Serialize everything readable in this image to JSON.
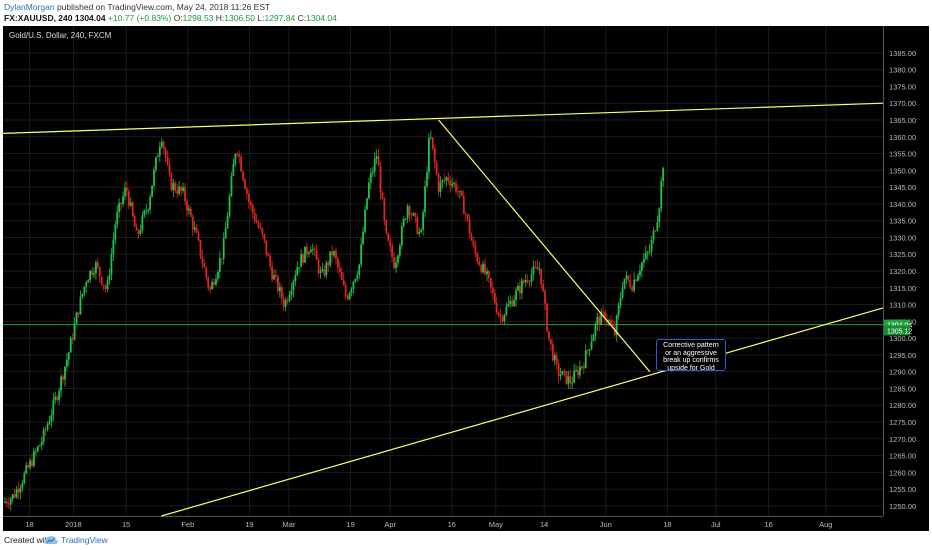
{
  "header": {
    "author": "DylanMorgan",
    "published_text": "published on TradingView.com, May 24, 2018 11:26 EST",
    "symbol": "FX:XAUUSD, 240",
    "last": "1304.04",
    "change": "+10.77 (+0.83%)",
    "o_label": "O:",
    "o": "1298.53",
    "h_label": "H:",
    "h": "1306.50",
    "l_label": "L:",
    "l": "1297.84",
    "c_label": "C:",
    "c": "1304.04"
  },
  "footer": {
    "created": "Created with",
    "brand": "TradingView",
    "logo_icon": "tradingview-cloud-icon"
  },
  "annotation": {
    "text": "Corrective pattern or an aggressive break up confirms upside for Gold"
  },
  "chart_data": {
    "type": "candlestick",
    "title": "Gold/U.S. Dollar, 240, FXCM",
    "ylim": [
      1247,
      1393
    ],
    "y_ticks": [
      "1385.00",
      "1380.00",
      "1375.00",
      "1370.00",
      "1365.00",
      "1360.00",
      "1355.00",
      "1350.00",
      "1345.00",
      "1340.00",
      "1335.00",
      "1330.00",
      "1325.00",
      "1320.00",
      "1315.00",
      "1310.00",
      "1305.00",
      "1300.00",
      "1295.00",
      "1290.00",
      "1285.00",
      "1280.00",
      "1275.00",
      "1270.00",
      "1265.00",
      "1260.00",
      "1255.00",
      "1250.00"
    ],
    "y_tick_values": [
      1385,
      1380,
      1375,
      1370,
      1365,
      1360,
      1355,
      1350,
      1345,
      1340,
      1335,
      1330,
      1325,
      1320,
      1315,
      1310,
      1305,
      1300,
      1295,
      1290,
      1285,
      1280,
      1275,
      1270,
      1265,
      1260,
      1255,
      1250
    ],
    "x_ticks": [
      {
        "label": "18",
        "t": 0.03
      },
      {
        "label": "2018",
        "t": 0.08
      },
      {
        "label": "15",
        "t": 0.14
      },
      {
        "label": "Feb",
        "t": 0.21
      },
      {
        "label": "19",
        "t": 0.28
      },
      {
        "label": "Mar",
        "t": 0.325
      },
      {
        "label": "19",
        "t": 0.395
      },
      {
        "label": "Apr",
        "t": 0.44
      },
      {
        "label": "16",
        "t": 0.51
      },
      {
        "label": "May",
        "t": 0.56
      },
      {
        "label": "14",
        "t": 0.615
      },
      {
        "label": "Jun",
        "t": 0.685
      },
      {
        "label": "18",
        "t": 0.755
      },
      {
        "label": "Jul",
        "t": 0.81
      },
      {
        "label": "16",
        "t": 0.87
      },
      {
        "label": "Aug",
        "t": 0.935
      }
    ],
    "current_price": "1304.04",
    "secondary_price_label": "1305.12",
    "horizontal_line": 1304.04,
    "colors": {
      "up": "#1fc24a",
      "down": "#e0261e",
      "trendline": "#ffff66",
      "price_line": "#1fa83a",
      "price_label_bg": "#1fa83a",
      "grid": "#1c1c1c"
    },
    "price_path": [
      {
        "t": 0.0,
        "p": 1251
      },
      {
        "t": 0.012,
        "p": 1253
      },
      {
        "t": 0.03,
        "p": 1262
      },
      {
        "t": 0.045,
        "p": 1270
      },
      {
        "t": 0.06,
        "p": 1282
      },
      {
        "t": 0.075,
        "p": 1296
      },
      {
        "t": 0.085,
        "p": 1308
      },
      {
        "t": 0.095,
        "p": 1318
      },
      {
        "t": 0.105,
        "p": 1322
      },
      {
        "t": 0.118,
        "p": 1314
      },
      {
        "t": 0.128,
        "p": 1335
      },
      {
        "t": 0.14,
        "p": 1345
      },
      {
        "t": 0.152,
        "p": 1330
      },
      {
        "t": 0.165,
        "p": 1340
      },
      {
        "t": 0.18,
        "p": 1361
      },
      {
        "t": 0.19,
        "p": 1346
      },
      {
        "t": 0.205,
        "p": 1343
      },
      {
        "t": 0.22,
        "p": 1330
      },
      {
        "t": 0.235,
        "p": 1314
      },
      {
        "t": 0.25,
        "p": 1326
      },
      {
        "t": 0.265,
        "p": 1358
      },
      {
        "t": 0.28,
        "p": 1340
      },
      {
        "t": 0.295,
        "p": 1330
      },
      {
        "t": 0.305,
        "p": 1320
      },
      {
        "t": 0.32,
        "p": 1310
      },
      {
        "t": 0.335,
        "p": 1322
      },
      {
        "t": 0.35,
        "p": 1328
      },
      {
        "t": 0.362,
        "p": 1318
      },
      {
        "t": 0.375,
        "p": 1326
      },
      {
        "t": 0.39,
        "p": 1312
      },
      {
        "t": 0.405,
        "p": 1322
      },
      {
        "t": 0.415,
        "p": 1345
      },
      {
        "t": 0.425,
        "p": 1355
      },
      {
        "t": 0.435,
        "p": 1330
      },
      {
        "t": 0.445,
        "p": 1322
      },
      {
        "t": 0.46,
        "p": 1340
      },
      {
        "t": 0.475,
        "p": 1330
      },
      {
        "t": 0.485,
        "p": 1361
      },
      {
        "t": 0.495,
        "p": 1345
      },
      {
        "t": 0.505,
        "p": 1348
      },
      {
        "t": 0.515,
        "p": 1345
      },
      {
        "t": 0.525,
        "p": 1338
      },
      {
        "t": 0.535,
        "p": 1326
      },
      {
        "t": 0.55,
        "p": 1318
      },
      {
        "t": 0.565,
        "p": 1306
      },
      {
        "t": 0.58,
        "p": 1312
      },
      {
        "t": 0.595,
        "p": 1318
      },
      {
        "t": 0.61,
        "p": 1321
      },
      {
        "t": 0.62,
        "p": 1300
      },
      {
        "t": 0.63,
        "p": 1290
      },
      {
        "t": 0.645,
        "p": 1287
      },
      {
        "t": 0.66,
        "p": 1293
      },
      {
        "t": 0.675,
        "p": 1305
      },
      {
        "t": 0.685,
        "p": 1307
      },
      {
        "t": 0.695,
        "p": 1301
      },
      {
        "t": 0.705,
        "p": 1318
      },
      {
        "t": 0.715,
        "p": 1316
      },
      {
        "t": 0.725,
        "p": 1322
      },
      {
        "t": 0.735,
        "p": 1326
      },
      {
        "t": 0.745,
        "p": 1338
      },
      {
        "t": 0.752,
        "p": 1357
      }
    ],
    "trendlines": [
      {
        "name": "upper-resistance",
        "t1": 0.0,
        "p1": 1361,
        "t2": 1.0,
        "p2": 1370
      },
      {
        "name": "descending-trendline",
        "t1": 0.495,
        "p1": 1365,
        "t2": 0.735,
        "p2": 1290
      },
      {
        "name": "lower-support",
        "t1": 0.18,
        "p1": 1247,
        "t2": 1.0,
        "p2": 1309
      }
    ]
  }
}
